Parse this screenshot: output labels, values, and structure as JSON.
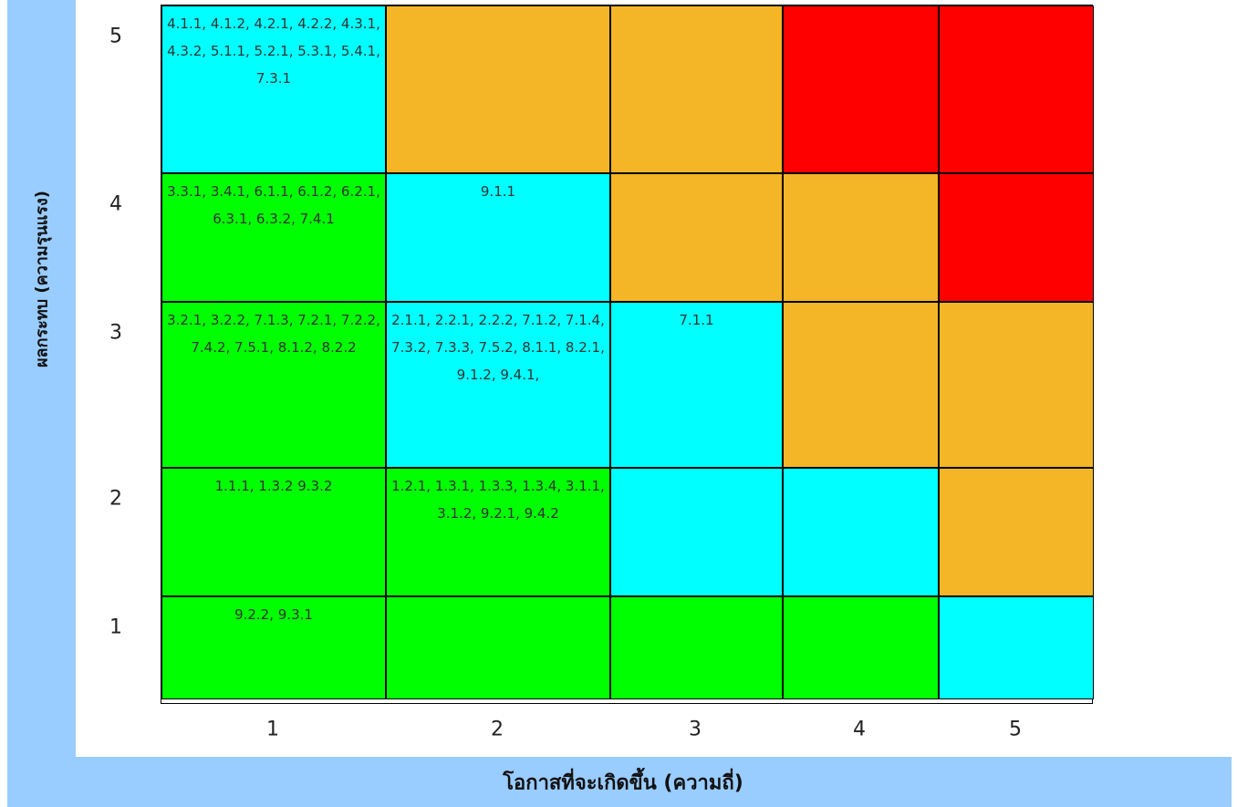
{
  "chart_data": {
    "type": "heatmap",
    "title": "",
    "xlabel": "โอกาสที่จะเกิดขึ้น (ความถี่)",
    "ylabel": "ผลกระทบ (ความรุนแรง)",
    "x_categories": [
      "1",
      "2",
      "3",
      "4",
      "5"
    ],
    "y_categories": [
      "5",
      "4",
      "3",
      "2",
      "1"
    ],
    "colors": {
      "green": "#00ff00",
      "cyan": "#00ffff",
      "orange": "#f4b626",
      "red": "#ff0000"
    },
    "rows": [
      {
        "impact": "5",
        "cells": [
          {
            "likelihood": "1",
            "color": "#00ffff",
            "items": "4.1.1, 4.1.2, 4.2.1, 4.2.2, 4.3.1, 4.3.2, 5.1.1, 5.2.1, 5.3.1, 5.4.1, 7.3.1"
          },
          {
            "likelihood": "2",
            "color": "#f4b626",
            "items": ""
          },
          {
            "likelihood": "3",
            "color": "#f4b626",
            "items": ""
          },
          {
            "likelihood": "4",
            "color": "#ff0000",
            "items": ""
          },
          {
            "likelihood": "5",
            "color": "#ff0000",
            "items": ""
          }
        ]
      },
      {
        "impact": "4",
        "cells": [
          {
            "likelihood": "1",
            "color": "#00ff00",
            "items": "3.3.1, 3.4.1, 6.1.1, 6.1.2, 6.2.1, 6.3.1, 6.3.2, 7.4.1"
          },
          {
            "likelihood": "2",
            "color": "#00ffff",
            "items": "9.1.1"
          },
          {
            "likelihood": "3",
            "color": "#f4b626",
            "items": ""
          },
          {
            "likelihood": "4",
            "color": "#f4b626",
            "items": ""
          },
          {
            "likelihood": "5",
            "color": "#ff0000",
            "items": ""
          }
        ]
      },
      {
        "impact": "3",
        "cells": [
          {
            "likelihood": "1",
            "color": "#00ff00",
            "items": "3.2.1, 3.2.2, 7.1.3, 7.2.1, 7.2.2, 7.4.2, 7.5.1, 8.1.2, 8.2.2"
          },
          {
            "likelihood": "2",
            "color": "#00ffff",
            "items": "2.1.1, 2.2.1, 2.2.2, 7.1.2, 7.1.4, 7.3.2, 7.3.3, 7.5.2, 8.1.1, 8.2.1, 9.1.2, 9.4.1,"
          },
          {
            "likelihood": "3",
            "color": "#00ffff",
            "items": "7.1.1"
          },
          {
            "likelihood": "4",
            "color": "#f4b626",
            "items": ""
          },
          {
            "likelihood": "5",
            "color": "#f4b626",
            "items": ""
          }
        ]
      },
      {
        "impact": "2",
        "cells": [
          {
            "likelihood": "1",
            "color": "#00ff00",
            "items": "1.1.1, 1.3.2 9.3.2"
          },
          {
            "likelihood": "2",
            "color": "#00ff00",
            "items": "1.2.1, 1.3.1, 1.3.3, 1.3.4, 3.1.1, 3.1.2, 9.2.1, 9.4.2"
          },
          {
            "likelihood": "3",
            "color": "#00ffff",
            "items": ""
          },
          {
            "likelihood": "4",
            "color": "#00ffff",
            "items": ""
          },
          {
            "likelihood": "5",
            "color": "#f4b626",
            "items": ""
          }
        ]
      },
      {
        "impact": "1",
        "cells": [
          {
            "likelihood": "1",
            "color": "#00ff00",
            "items": "9.2.2, 9.3.1"
          },
          {
            "likelihood": "2",
            "color": "#00ff00",
            "items": ""
          },
          {
            "likelihood": "3",
            "color": "#00ff00",
            "items": ""
          },
          {
            "likelihood": "4",
            "color": "#00ff00",
            "items": ""
          },
          {
            "likelihood": "5",
            "color": "#00ffff",
            "items": ""
          }
        ]
      }
    ]
  }
}
